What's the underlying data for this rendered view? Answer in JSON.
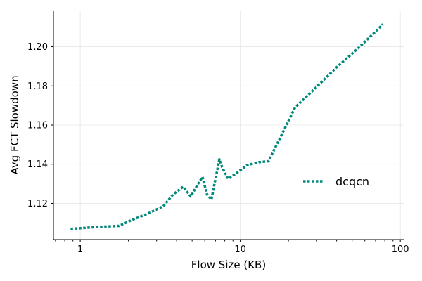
{
  "chart_data": {
    "type": "line",
    "title": "",
    "xlabel": "Flow Size (KB)",
    "ylabel": "Avg FCT Slowdown",
    "x_scale": "log",
    "xlim": [
      0.68,
      105
    ],
    "ylim": [
      1.1015,
      1.2185
    ],
    "grid": true,
    "legend_position": "center-right",
    "x_ticks": [
      1,
      10,
      100
    ],
    "x_tick_labels": [
      "1",
      "10",
      "100"
    ],
    "y_ticks": [
      1.12,
      1.14,
      1.16,
      1.18,
      1.2
    ],
    "y_tick_labels": [
      "1.12",
      "1.14",
      "1.16",
      "1.18",
      "1.20"
    ],
    "series": [
      {
        "name": "dcqcn",
        "color": "#00897b",
        "line_style": "dotted",
        "x": [
          0.87,
          1.0,
          1.3,
          1.75,
          2.1,
          2.6,
          3.3,
          3.8,
          4.4,
          4.9,
          5.4,
          5.8,
          6.2,
          6.6,
          7.1,
          7.4,
          7.7,
          8.4,
          9.5,
          11.0,
          13.0,
          15.0,
          18.0,
          22.0,
          30.0,
          40.0,
          55.0,
          78.0
        ],
        "values": [
          1.107,
          1.1073,
          1.108,
          1.1085,
          1.1115,
          1.1145,
          1.1185,
          1.1245,
          1.1285,
          1.1235,
          1.1295,
          1.1335,
          1.1245,
          1.122,
          1.135,
          1.1425,
          1.1385,
          1.1325,
          1.1355,
          1.1395,
          1.141,
          1.1415,
          1.1545,
          1.169,
          1.1795,
          1.1895,
          1.1995,
          1.2115
        ]
      }
    ]
  }
}
